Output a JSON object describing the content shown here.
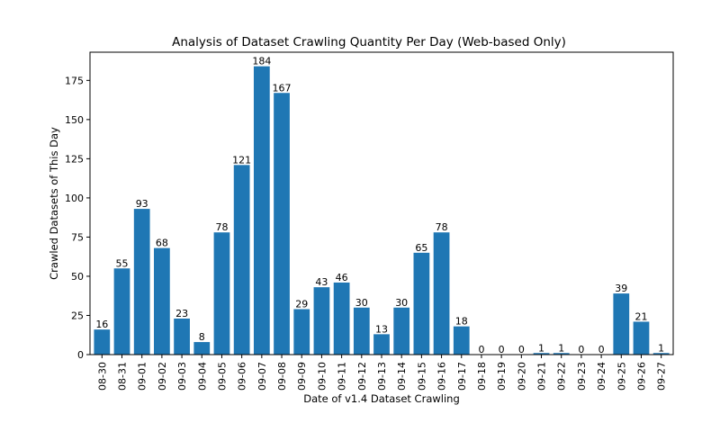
{
  "chart_data": {
    "type": "bar",
    "title": "Analysis of Dataset Crawling Quantity Per Day (Web-based Only)",
    "xlabel": "Date of v1.4 Dataset Crawling",
    "ylabel": "Crawled Datasets of This Day",
    "categories": [
      "08-30",
      "08-31",
      "09-01",
      "09-02",
      "09-03",
      "09-04",
      "09-05",
      "09-06",
      "09-07",
      "09-08",
      "09-09",
      "09-10",
      "09-11",
      "09-12",
      "09-13",
      "09-14",
      "09-15",
      "09-16",
      "09-17",
      "09-18",
      "09-19",
      "09-20",
      "09-21",
      "09-22",
      "09-23",
      "09-24",
      "09-25",
      "09-26",
      "09-27"
    ],
    "values": [
      16,
      55,
      93,
      68,
      23,
      8,
      78,
      121,
      184,
      167,
      29,
      43,
      46,
      30,
      13,
      30,
      65,
      78,
      18,
      0,
      0,
      0,
      1,
      1,
      0,
      0,
      39,
      21,
      1
    ],
    "ylim": [
      0,
      193
    ],
    "yticks": [
      0,
      25,
      50,
      75,
      100,
      125,
      150,
      175
    ],
    "grid": false,
    "bar_color": "#1f77b4"
  }
}
